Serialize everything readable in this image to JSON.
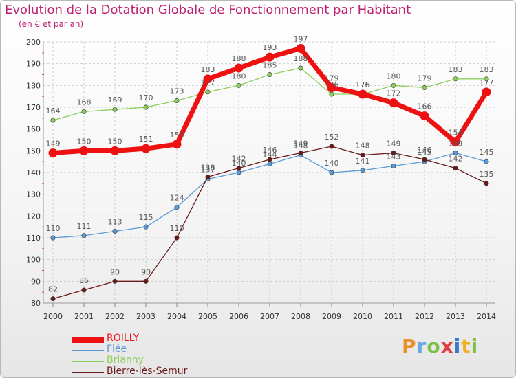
{
  "chart_data": {
    "type": "line",
    "title": "Evolution de la Dotation Globale de Fonctionnement par Habitant",
    "subtitle": "(en € et par an)",
    "categories": [
      "2000",
      "2001",
      "2002",
      "2003",
      "2004",
      "2005",
      "2006",
      "2007",
      "2008",
      "2009",
      "2010",
      "2011",
      "2012",
      "2013",
      "2014"
    ],
    "ylim": [
      80,
      200
    ],
    "yticks": [
      80,
      90,
      100,
      110,
      120,
      130,
      140,
      150,
      160,
      170,
      180,
      190,
      200
    ],
    "grid": true,
    "legend_position": "bottom-left",
    "series": [
      {
        "name": "Flée",
        "color": "#5b9bd5",
        "values": [
          110,
          111,
          113,
          115,
          124,
          137,
          140,
          144,
          148,
          140,
          141,
          143,
          145,
          149,
          145
        ]
      },
      {
        "name": "Brianny",
        "color": "#8ccf5a",
        "values": [
          164,
          168,
          169,
          170,
          173,
          177,
          180,
          185,
          188,
          176,
          176,
          180,
          179,
          183,
          183
        ]
      },
      {
        "name": "Bierre-lès-Semur",
        "color": "#6b1a1a",
        "values": [
          82,
          86,
          90,
          90,
          110,
          138,
          142,
          146,
          149,
          152,
          148,
          149,
          146,
          142,
          135
        ]
      },
      {
        "name": "ROILLY",
        "color": "#ee1111",
        "values": [
          149,
          150,
          150,
          151,
          153,
          183,
          188,
          193,
          197,
          179,
          176,
          172,
          166,
          154,
          177
        ]
      }
    ],
    "legend": [
      {
        "name": "ROILLY",
        "color": "#ee1111",
        "width": 9
      },
      {
        "name": "Flée",
        "color": "#5b9bd5",
        "width": 2
      },
      {
        "name": "Brianny",
        "color": "#8ccf5a",
        "width": 2
      },
      {
        "name": "Bierre-lès-Semur",
        "color": "#6b1a1a",
        "width": 2
      }
    ]
  },
  "logo": {
    "text": "Proxiti"
  }
}
